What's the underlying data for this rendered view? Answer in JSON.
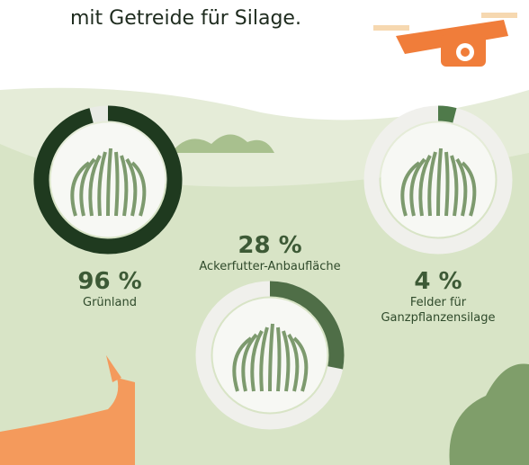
{
  "header_text": "mit Getreide für Silage.",
  "chart_data": [
    {
      "type": "donut",
      "values": [
        96
      ],
      "value_labels": [
        "96 %"
      ],
      "label": "Grünland",
      "color": "#1f3a1f"
    },
    {
      "type": "donut",
      "values": [
        28
      ],
      "value_labels": [
        "28 %"
      ],
      "label": "Ackerfutter-Anbaufläche",
      "color": "#4f6e47"
    },
    {
      "type": "donut",
      "values": [
        4
      ],
      "value_labels": [
        "4 %"
      ],
      "label": "Felder für\nGanzpflanzensilage",
      "color": "#4f7a4a"
    }
  ]
}
